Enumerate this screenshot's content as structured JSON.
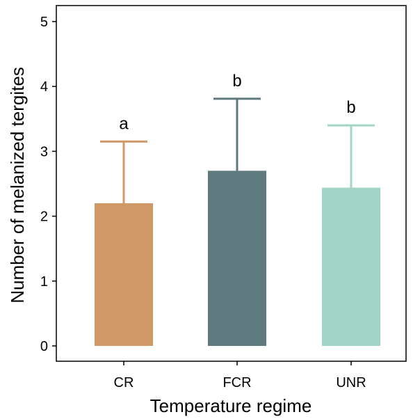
{
  "chart_data": {
    "type": "bar",
    "xlabel": "Temperature regime",
    "ylabel": "Number of melanized tergites",
    "ylim": [
      0,
      5.2
    ],
    "yticks": [
      0,
      1,
      2,
      3,
      4,
      5
    ],
    "categories": [
      "CR",
      "FCR",
      "UNR"
    ],
    "values": [
      2.2,
      2.7,
      2.44
    ],
    "error_upper": [
      3.15,
      3.81,
      3.4
    ],
    "significance": [
      "a",
      "b",
      "b"
    ],
    "colors": [
      "#d09a68",
      "#5e7a7e",
      "#a2d5c7"
    ],
    "grid": false,
    "legend": "none"
  }
}
